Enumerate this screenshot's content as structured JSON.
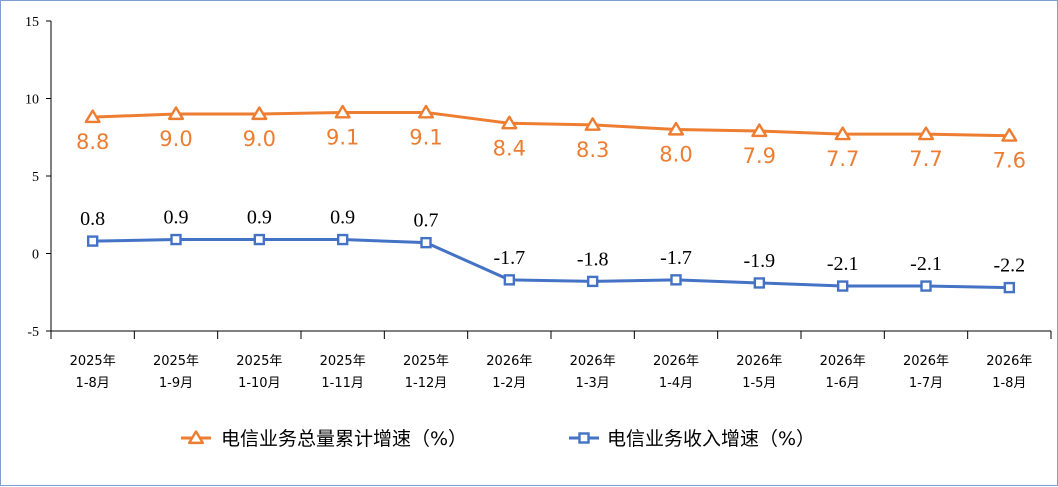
{
  "chart_data": {
    "type": "line",
    "categories": [
      [
        "2025年",
        "1-8月"
      ],
      [
        "2025年",
        "1-9月"
      ],
      [
        "2025年",
        "1-10月"
      ],
      [
        "2025年",
        "1-11月"
      ],
      [
        "2025年",
        "1-12月"
      ],
      [
        "2026年",
        "1-2月"
      ],
      [
        "2026年",
        "1-3月"
      ],
      [
        "2026年",
        "1-4月"
      ],
      [
        "2026年",
        "1-5月"
      ],
      [
        "2026年",
        "1-6月"
      ],
      [
        "2026年",
        "1-7月"
      ],
      [
        "2026年",
        "1-8月"
      ]
    ],
    "ylim": [
      -5,
      15
    ],
    "yticks": [
      15,
      10,
      5,
      0,
      -5
    ],
    "series": [
      {
        "name": "电信业务总量累计增速（%）",
        "color": "#ed7d31",
        "marker": "triangle",
        "values": [
          8.8,
          9.0,
          9.0,
          9.1,
          9.1,
          8.4,
          8.3,
          8.0,
          7.9,
          7.7,
          7.7,
          7.6
        ],
        "labels": [
          "8.8",
          "9.0",
          "9.0",
          "9.1",
          "9.1",
          "8.4",
          "8.3",
          "8.0",
          "7.9",
          "7.7",
          "7.7",
          "7.6"
        ],
        "label_position": "below"
      },
      {
        "name": "电信业务收入增速（%）",
        "color": "#4472c4",
        "marker": "square",
        "values": [
          0.8,
          0.9,
          0.9,
          0.9,
          0.7,
          -1.7,
          -1.8,
          -1.7,
          -1.9,
          -2.1,
          -2.1,
          -2.2
        ],
        "labels": [
          "0.8",
          "0.9",
          "0.9",
          "0.9",
          "0.7",
          "-1.7",
          "-1.8",
          "-1.7",
          "-1.9",
          "-2.1",
          "-2.1",
          "-2.2"
        ],
        "label_position": "above"
      }
    ],
    "grid": false,
    "legend_position": "bottom"
  }
}
